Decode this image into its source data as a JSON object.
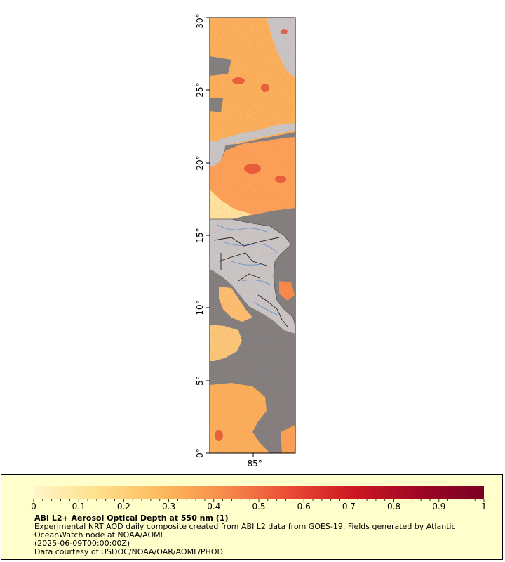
{
  "map": {
    "lat_ticks": [
      "0°",
      "5°",
      "10°",
      "15°",
      "20°",
      "25°",
      "30°"
    ],
    "lon_ticks": [
      "-85°"
    ],
    "colors": {
      "land": "#c8c8c8",
      "no_data": "#808080",
      "coast": "#555555",
      "rivers": "#6a8fc6",
      "borders": "#222222"
    }
  },
  "legend": {
    "labels": [
      "0",
      "0.1",
      "0.2",
      "0.3",
      "0.4",
      "0.5",
      "0.6",
      "0.7",
      "0.8",
      "0.9",
      "1"
    ],
    "scale_min": 0,
    "scale_max": 1,
    "color_stops": [
      "#fff6c8",
      "#ffe08c",
      "#fdb85c",
      "#f7894b",
      "#ea4a35",
      "#cc1822",
      "#9e0625",
      "#7a0022"
    ]
  },
  "caption": {
    "title": "ABI L2+ Aerosol Optical Depth at 550 nm (1)",
    "description": "Experimental NRT AOD daily composite created from ABI L2 data from GOES-19. Fields generated by Atlantic OceanWatch node at NOAA/AOML",
    "timestamp": "(2025-06-09T00:00:00Z)",
    "credit": "Data courtesy of USDOC/NOAA/OAR/AOML/PHOD"
  }
}
